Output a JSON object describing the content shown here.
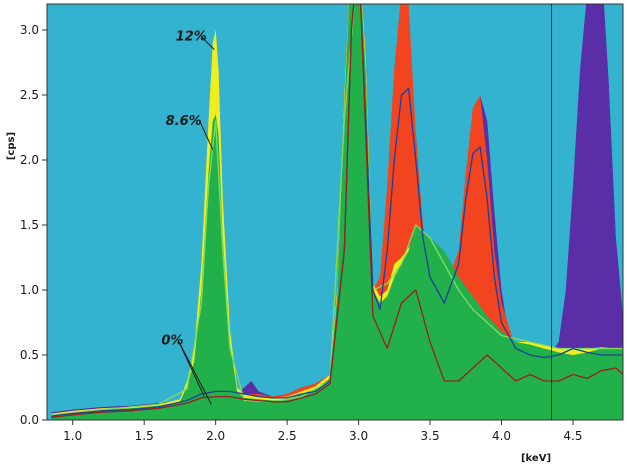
{
  "chart_data": {
    "type": "area",
    "title": "",
    "xlabel": "[keV]",
    "ylabel": "[cps]",
    "xlim": [
      0.82,
      4.85
    ],
    "ylim": [
      0,
      3.2
    ],
    "xticks": [
      1.0,
      1.5,
      2.0,
      2.5,
      3.0,
      3.5,
      4.0,
      4.5
    ],
    "yticks": [
      0.0,
      0.5,
      1.0,
      1.5,
      2.0,
      2.5,
      3.0
    ],
    "x_tick_labels": [
      "1.0",
      "1.5",
      "2.0",
      "2.5",
      "3.0",
      "3.5",
      "4.0",
      "4.5"
    ],
    "y_tick_labels": [
      "0.0",
      "0.5",
      "1.0",
      "1.5",
      "2.0",
      "2.5",
      "3.0"
    ],
    "grid": false,
    "plot_background": "#33b3cf",
    "cursor_x": 4.35,
    "annotations": [
      {
        "text": "12%",
        "x": 1.72,
        "y": 2.92,
        "to_x": 1.99,
        "to_y": 2.85
      },
      {
        "text": "8.6%",
        "x": 1.65,
        "y": 2.27,
        "to_x": 1.98,
        "to_y": 2.08
      },
      {
        "text": "0%",
        "x": 1.62,
        "y": 0.58,
        "to_x": 1.92,
        "to_y": 0.18,
        "to_x2": 1.97,
        "to_y2": 0.12
      }
    ],
    "series": [
      {
        "kind": "fill",
        "color": "#5a2ea6",
        "x": [
          0.85,
          1.0,
          1.2,
          1.4,
          1.6,
          1.75,
          1.85,
          1.9,
          1.95,
          2.0,
          2.05,
          2.1,
          2.15,
          2.2,
          2.25,
          2.3,
          2.35,
          2.4,
          2.5,
          2.6,
          2.7,
          2.8,
          2.85,
          2.9,
          2.95,
          3.0,
          3.05,
          3.1,
          3.15,
          3.2,
          3.25,
          3.3,
          3.35,
          3.4,
          3.45,
          3.5,
          3.6,
          3.7,
          3.75,
          3.8,
          3.85,
          3.9,
          3.95,
          4.0,
          4.05,
          4.1,
          4.2,
          4.3,
          4.4,
          4.45,
          4.5,
          4.55,
          4.6,
          4.65,
          4.7,
          4.75,
          4.8,
          4.85
        ],
        "y": [
          0.06,
          0.08,
          0.1,
          0.11,
          0.13,
          0.15,
          0.3,
          0.9,
          1.8,
          2.3,
          1.5,
          0.6,
          0.2,
          0.25,
          0.3,
          0.22,
          0.2,
          0.18,
          0.2,
          0.25,
          0.28,
          0.35,
          1.0,
          2.5,
          3.6,
          3.6,
          2.8,
          1.0,
          1.0,
          1.4,
          2.0,
          2.5,
          2.7,
          2.2,
          1.5,
          1.2,
          1.0,
          1.2,
          1.7,
          2.2,
          2.5,
          2.3,
          1.6,
          1.0,
          0.65,
          0.5,
          0.45,
          0.45,
          0.6,
          1.0,
          1.8,
          2.7,
          3.3,
          3.6,
          3.5,
          2.6,
          1.4,
          0.8
        ]
      },
      {
        "kind": "fill",
        "color": "#f2441e",
        "x": [
          0.85,
          1.0,
          1.2,
          1.4,
          1.6,
          1.75,
          1.85,
          1.9,
          1.95,
          2.0,
          2.05,
          2.1,
          2.15,
          2.2,
          2.3,
          2.4,
          2.5,
          2.6,
          2.7,
          2.8,
          2.85,
          2.9,
          2.95,
          3.0,
          3.05,
          3.1,
          3.15,
          3.2,
          3.25,
          3.3,
          3.35,
          3.4,
          3.45,
          3.5,
          3.6,
          3.7,
          3.75,
          3.8,
          3.85,
          3.9,
          3.95,
          4.0,
          4.1,
          4.2,
          4.3,
          4.4,
          4.5,
          4.6,
          4.7,
          4.8,
          4.85
        ],
        "y": [
          0.05,
          0.07,
          0.09,
          0.1,
          0.12,
          0.14,
          0.28,
          0.85,
          1.7,
          2.2,
          1.4,
          0.55,
          0.2,
          0.2,
          0.2,
          0.18,
          0.2,
          0.25,
          0.28,
          0.35,
          1.0,
          2.5,
          3.6,
          3.6,
          2.8,
          1.0,
          1.1,
          1.8,
          2.7,
          3.3,
          3.2,
          2.2,
          1.5,
          1.2,
          1.0,
          1.3,
          1.9,
          2.4,
          2.5,
          2.0,
          1.3,
          0.9,
          0.55,
          0.45,
          0.45,
          0.45,
          0.5,
          0.55,
          0.5,
          0.45,
          0.45
        ]
      },
      {
        "kind": "fill",
        "color": "#f2ee1c",
        "x": [
          0.85,
          1.0,
          1.2,
          1.4,
          1.6,
          1.75,
          1.8,
          1.85,
          1.9,
          1.95,
          1.98,
          2.0,
          2.02,
          2.05,
          2.1,
          2.15,
          2.2,
          2.3,
          2.4,
          2.5,
          2.6,
          2.7,
          2.8,
          2.85,
          2.9,
          2.95,
          3.0,
          3.05,
          3.1,
          3.15,
          3.2,
          3.25,
          3.3,
          3.4,
          3.5,
          3.6,
          3.7,
          3.8,
          3.9,
          4.0,
          4.1,
          4.2,
          4.3,
          4.4,
          4.5,
          4.6,
          4.7,
          4.8,
          4.85
        ],
        "y": [
          0.05,
          0.07,
          0.09,
          0.1,
          0.12,
          0.16,
          0.3,
          0.55,
          1.2,
          2.3,
          2.9,
          3.0,
          2.7,
          1.7,
          0.7,
          0.25,
          0.2,
          0.18,
          0.17,
          0.18,
          0.22,
          0.26,
          0.35,
          1.0,
          2.5,
          3.6,
          3.6,
          2.8,
          1.05,
          0.95,
          1.0,
          1.2,
          1.25,
          1.4,
          1.35,
          1.25,
          1.05,
          0.9,
          0.75,
          0.65,
          0.6,
          0.6,
          0.58,
          0.55,
          0.55,
          0.55,
          0.56,
          0.55,
          0.55
        ]
      },
      {
        "kind": "fill",
        "color": "#22b04a",
        "x": [
          0.85,
          1.0,
          1.2,
          1.4,
          1.6,
          1.75,
          1.8,
          1.85,
          1.9,
          1.95,
          1.98,
          2.0,
          2.02,
          2.05,
          2.1,
          2.15,
          2.2,
          2.3,
          2.4,
          2.5,
          2.6,
          2.7,
          2.8,
          2.85,
          2.9,
          2.95,
          3.0,
          3.05,
          3.1,
          3.15,
          3.2,
          3.25,
          3.3,
          3.35,
          3.4,
          3.45,
          3.5,
          3.6,
          3.7,
          3.8,
          3.9,
          4.0,
          4.1,
          4.2,
          4.3,
          4.4,
          4.5,
          4.6,
          4.7,
          4.8,
          4.85
        ],
        "y": [
          0.04,
          0.06,
          0.08,
          0.09,
          0.11,
          0.14,
          0.26,
          0.45,
          1.0,
          1.9,
          2.3,
          2.35,
          2.2,
          1.4,
          0.6,
          0.22,
          0.17,
          0.16,
          0.15,
          0.16,
          0.2,
          0.24,
          0.32,
          0.95,
          2.4,
          3.6,
          3.6,
          2.7,
          1.0,
          0.9,
          0.95,
          1.1,
          1.2,
          1.3,
          1.5,
          1.45,
          1.4,
          1.3,
          1.1,
          0.95,
          0.8,
          0.68,
          0.6,
          0.58,
          0.55,
          0.52,
          0.5,
          0.52,
          0.55,
          0.55,
          0.55
        ]
      },
      {
        "kind": "line",
        "color": "#7fdc60",
        "x": [
          0.85,
          1.2,
          1.6,
          1.8,
          1.9,
          1.95,
          2.0,
          2.05,
          2.1,
          2.2,
          2.4,
          2.6,
          2.8,
          2.9,
          3.0,
          3.1,
          3.2,
          3.3,
          3.4,
          3.5,
          3.6,
          3.7,
          3.8,
          3.9,
          4.0,
          4.2,
          4.4,
          4.6,
          4.85
        ],
        "y": [
          0.04,
          0.08,
          0.12,
          0.24,
          0.9,
          1.8,
          2.3,
          1.3,
          0.55,
          0.15,
          0.14,
          0.18,
          0.3,
          2.3,
          3.6,
          1.0,
          1.05,
          1.2,
          1.5,
          1.4,
          1.2,
          1.0,
          0.85,
          0.75,
          0.65,
          0.6,
          0.55,
          0.55,
          0.55
        ]
      },
      {
        "kind": "line",
        "color": "#1e3f9a",
        "x": [
          0.85,
          1.0,
          1.2,
          1.4,
          1.6,
          1.8,
          1.9,
          2.0,
          2.1,
          2.2,
          2.3,
          2.4,
          2.5,
          2.6,
          2.7,
          2.8,
          2.9,
          2.95,
          3.0,
          3.1,
          3.15,
          3.2,
          3.25,
          3.3,
          3.35,
          3.4,
          3.45,
          3.5,
          3.6,
          3.7,
          3.75,
          3.8,
          3.85,
          3.9,
          3.95,
          4.0,
          4.1,
          4.2,
          4.3,
          4.4,
          4.5,
          4.6,
          4.7,
          4.85
        ],
        "y": [
          0.03,
          0.05,
          0.07,
          0.08,
          0.1,
          0.15,
          0.2,
          0.22,
          0.22,
          0.2,
          0.18,
          0.17,
          0.17,
          0.2,
          0.22,
          0.3,
          1.3,
          3.0,
          3.6,
          1.0,
          0.85,
          1.3,
          2.0,
          2.5,
          2.55,
          2.0,
          1.4,
          1.1,
          0.9,
          1.2,
          1.7,
          2.05,
          2.1,
          1.7,
          1.1,
          0.75,
          0.55,
          0.5,
          0.48,
          0.5,
          0.55,
          0.52,
          0.5,
          0.5
        ]
      },
      {
        "kind": "line",
        "color": "#9a2020",
        "x": [
          0.85,
          1.0,
          1.2,
          1.4,
          1.6,
          1.8,
          1.9,
          2.0,
          2.1,
          2.2,
          2.3,
          2.4,
          2.5,
          2.6,
          2.7,
          2.8,
          2.9,
          2.95,
          3.0,
          3.1,
          3.2,
          3.3,
          3.4,
          3.5,
          3.6,
          3.7,
          3.8,
          3.9,
          4.0,
          4.1,
          4.2,
          4.3,
          4.4,
          4.5,
          4.6,
          4.7,
          4.8,
          4.85
        ],
        "y": [
          0.02,
          0.04,
          0.06,
          0.07,
          0.09,
          0.13,
          0.17,
          0.18,
          0.18,
          0.16,
          0.15,
          0.14,
          0.14,
          0.17,
          0.2,
          0.28,
          1.3,
          3.0,
          3.6,
          0.8,
          0.55,
          0.9,
          1.0,
          0.6,
          0.3,
          0.3,
          0.4,
          0.5,
          0.4,
          0.3,
          0.35,
          0.3,
          0.3,
          0.35,
          0.32,
          0.38,
          0.4,
          0.35
        ]
      }
    ]
  }
}
